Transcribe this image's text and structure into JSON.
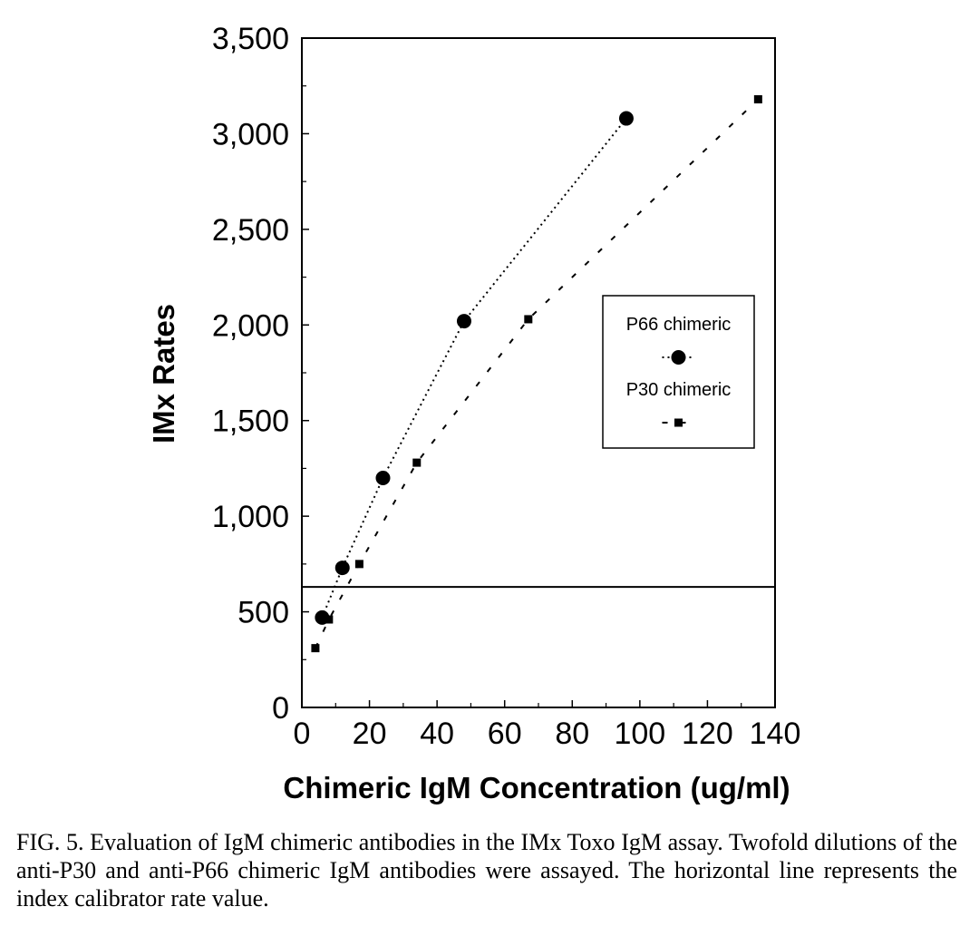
{
  "chart_data": {
    "type": "line",
    "xlabel": "Chimeric IgM Concentration (ug/ml)",
    "ylabel": "IMx Rates",
    "xlim": [
      0,
      140
    ],
    "ylim": [
      0,
      3500
    ],
    "x_ticks": [
      "0",
      "20",
      "40",
      "60",
      "80",
      "100",
      "120",
      "140"
    ],
    "y_ticks": [
      "0",
      "500",
      "1,000",
      "1,500",
      "2,000",
      "2,500",
      "3,000",
      "3,500"
    ],
    "legend_position": "right",
    "reference_line": {
      "y": 630,
      "description": "index calibrator rate value"
    },
    "series": [
      {
        "name": "P66 chimeric",
        "marker": "circle",
        "line_style": "dotted",
        "color": "#000000",
        "x": [
          6,
          12,
          24,
          48,
          96
        ],
        "y": [
          470,
          730,
          1200,
          2020,
          3080
        ]
      },
      {
        "name": "P30 chimeric",
        "marker": "square",
        "line_style": "dashed",
        "color": "#000000",
        "x": [
          4,
          8,
          17,
          34,
          67,
          135
        ],
        "y": [
          310,
          460,
          750,
          1280,
          2030,
          3180
        ]
      }
    ]
  },
  "caption": "FIG. 5. Evaluation of IgM chimeric antibodies in the IMx Toxo IgM assay. Twofold dilutions of the anti-P30 and anti-P66 chimeric IgM antibodies were assayed. The horizontal line represents the index calibrator rate value."
}
